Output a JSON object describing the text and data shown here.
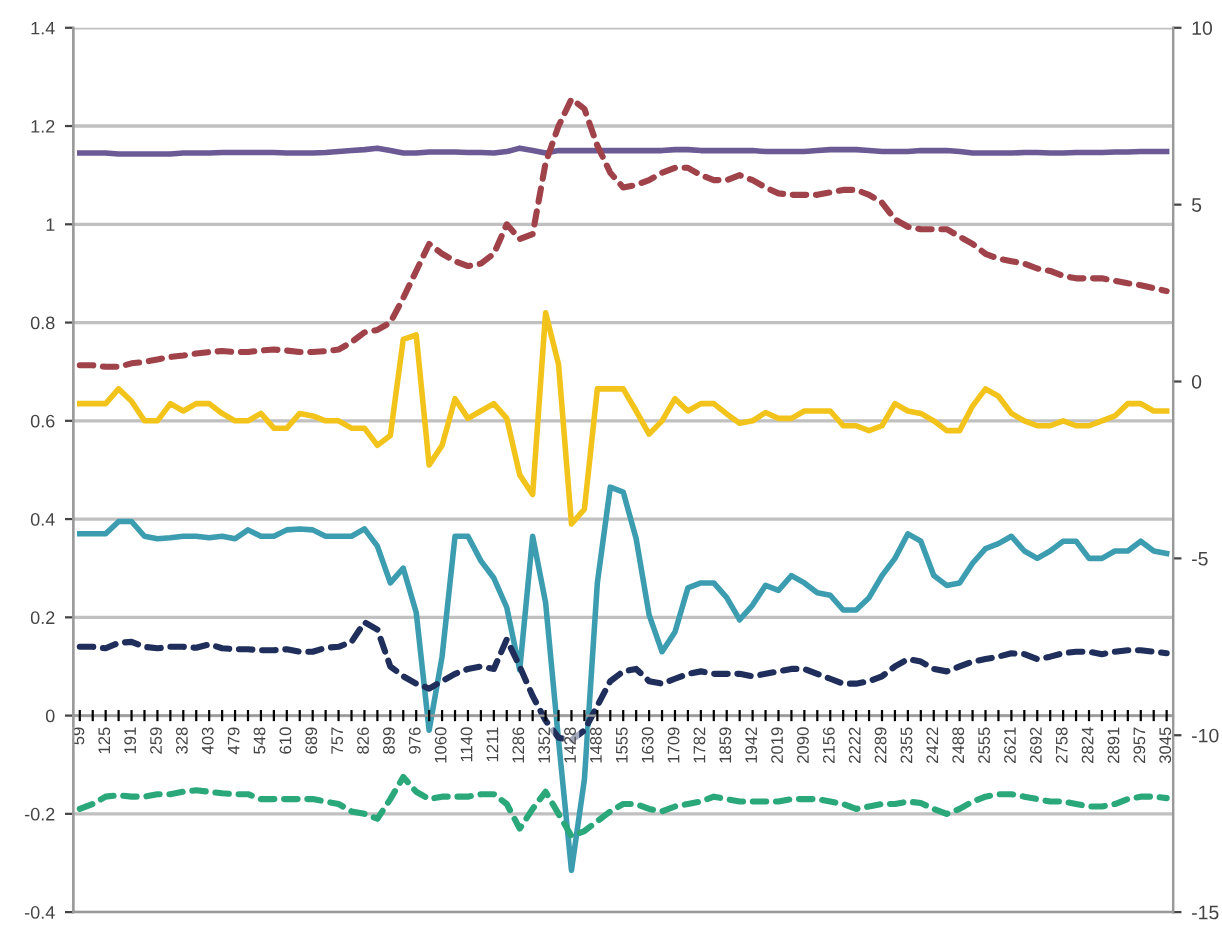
{
  "chart_data": {
    "type": "line",
    "categories": [
      "59",
      null,
      "125",
      null,
      "191",
      null,
      "259",
      null,
      "328",
      null,
      "403",
      null,
      "479",
      null,
      "548",
      null,
      "610",
      null,
      "689",
      null,
      "757",
      null,
      "826",
      null,
      "899",
      null,
      "976",
      null,
      "1060",
      null,
      "1140",
      null,
      "1211",
      null,
      "1286",
      null,
      "1352",
      null,
      "1428",
      null,
      "1488",
      null,
      "1555",
      null,
      "1630",
      null,
      "1709",
      null,
      "1782",
      null,
      "1859",
      null,
      "1942",
      null,
      "2019",
      null,
      "2090",
      null,
      "2156",
      null,
      "2222",
      null,
      "2289",
      null,
      "2355",
      null,
      "2422",
      null,
      "2488",
      null,
      "2555",
      null,
      "2621",
      null,
      "2692",
      null,
      "2758",
      null,
      "2824",
      null,
      "2891",
      null,
      "2957",
      null,
      "3045"
    ],
    "series": [
      {
        "color": "#6b5a94",
        "line_style": "solid",
        "values": [
          1.145,
          1.145,
          1.145,
          1.143,
          1.143,
          1.143,
          1.143,
          1.143,
          1.145,
          1.145,
          1.145,
          1.146,
          1.146,
          1.146,
          1.146,
          1.146,
          1.145,
          1.145,
          1.145,
          1.146,
          1.148,
          1.15,
          1.152,
          1.155,
          1.15,
          1.145,
          1.145,
          1.147,
          1.147,
          1.147,
          1.146,
          1.146,
          1.145,
          1.148,
          1.155,
          1.15,
          1.145,
          1.15,
          1.15,
          1.15,
          1.15,
          1.15,
          1.15,
          1.15,
          1.15,
          1.15,
          1.152,
          1.152,
          1.15,
          1.15,
          1.15,
          1.15,
          1.15,
          1.148,
          1.148,
          1.148,
          1.148,
          1.15,
          1.152,
          1.152,
          1.152,
          1.15,
          1.148,
          1.148,
          1.148,
          1.15,
          1.15,
          1.15,
          1.148,
          1.145,
          1.145,
          1.145,
          1.145,
          1.146,
          1.146,
          1.145,
          1.145,
          1.146,
          1.146,
          1.146,
          1.147,
          1.147,
          1.148,
          1.148,
          1.148
        ]
      },
      {
        "color": "#a0424a",
        "line_style": "dashed",
        "values": [
          0.713,
          0.713,
          0.71,
          0.71,
          0.717,
          0.72,
          0.725,
          0.73,
          0.733,
          0.737,
          0.74,
          0.742,
          0.74,
          0.74,
          0.743,
          0.745,
          0.743,
          0.74,
          0.74,
          0.742,
          0.745,
          0.76,
          0.78,
          0.785,
          0.8,
          0.85,
          0.905,
          0.96,
          0.94,
          0.925,
          0.915,
          0.92,
          0.94,
          1.0,
          0.97,
          0.98,
          1.125,
          1.2,
          1.255,
          1.235,
          1.16,
          1.105,
          1.075,
          1.08,
          1.09,
          1.105,
          1.115,
          1.115,
          1.1,
          1.09,
          1.09,
          1.1,
          1.09,
          1.075,
          1.063,
          1.06,
          1.06,
          1.06,
          1.065,
          1.07,
          1.07,
          1.06,
          1.044,
          1.01,
          0.995,
          0.99,
          0.99,
          0.99,
          0.975,
          0.96,
          0.94,
          0.93,
          0.925,
          0.92,
          0.91,
          0.905,
          0.895,
          0.89,
          0.89,
          0.89,
          0.885,
          0.88,
          0.876,
          0.87,
          0.864
        ]
      },
      {
        "color": "#f2c31a",
        "line_style": "solid",
        "values": [
          0.635,
          0.635,
          0.635,
          0.665,
          0.64,
          0.6,
          0.6,
          0.635,
          0.62,
          0.635,
          0.635,
          0.615,
          0.6,
          0.6,
          0.615,
          0.585,
          0.585,
          0.615,
          0.61,
          0.6,
          0.6,
          0.585,
          0.585,
          0.55,
          0.57,
          0.766,
          0.775,
          0.51,
          0.55,
          0.645,
          0.605,
          0.62,
          0.635,
          0.605,
          0.49,
          0.45,
          0.82,
          0.715,
          0.39,
          0.42,
          0.665,
          0.665,
          0.665,
          0.62,
          0.573,
          0.6,
          0.645,
          0.62,
          0.635,
          0.635,
          0.614,
          0.595,
          0.6,
          0.617,
          0.605,
          0.605,
          0.62,
          0.62,
          0.62,
          0.59,
          0.59,
          0.58,
          0.59,
          0.635,
          0.62,
          0.615,
          0.6,
          0.58,
          0.58,
          0.63,
          0.665,
          0.65,
          0.615,
          0.6,
          0.59,
          0.59,
          0.6,
          0.59,
          0.59,
          0.6,
          0.61,
          0.635,
          0.635,
          0.62,
          0.62
        ]
      },
      {
        "color": "#3c9cb0",
        "line_style": "solid",
        "values": [
          0.37,
          0.37,
          0.37,
          0.395,
          0.395,
          0.365,
          0.36,
          0.362,
          0.365,
          0.365,
          0.362,
          0.365,
          0.36,
          0.378,
          0.365,
          0.365,
          0.378,
          0.38,
          0.378,
          0.365,
          0.365,
          0.365,
          0.38,
          0.345,
          0.27,
          0.3,
          0.21,
          -0.03,
          0.12,
          0.365,
          0.365,
          0.315,
          0.28,
          0.22,
          0.093,
          0.365,
          0.23,
          -0.05,
          -0.315,
          -0.13,
          0.27,
          0.465,
          0.455,
          0.36,
          0.205,
          0.13,
          0.17,
          0.26,
          0.27,
          0.27,
          0.24,
          0.195,
          0.225,
          0.265,
          0.255,
          0.285,
          0.27,
          0.25,
          0.245,
          0.215,
          0.215,
          0.24,
          0.285,
          0.32,
          0.37,
          0.355,
          0.285,
          0.265,
          0.27,
          0.31,
          0.34,
          0.35,
          0.365,
          0.335,
          0.32,
          0.335,
          0.355,
          0.355,
          0.32,
          0.32,
          0.335,
          0.335,
          0.355,
          0.335,
          0.33
        ]
      },
      {
        "color": "#1f2e5a",
        "line_style": "dashed",
        "values": [
          0.14,
          0.14,
          0.137,
          0.148,
          0.15,
          0.14,
          0.137,
          0.14,
          0.14,
          0.138,
          0.145,
          0.137,
          0.135,
          0.135,
          0.133,
          0.133,
          0.135,
          0.13,
          0.13,
          0.138,
          0.14,
          0.15,
          0.19,
          0.175,
          0.1,
          0.08,
          0.065,
          0.055,
          0.07,
          0.085,
          0.095,
          0.1,
          0.095,
          0.155,
          0.1,
          0.04,
          -0.01,
          -0.045,
          -0.05,
          -0.03,
          0.02,
          0.07,
          0.09,
          0.095,
          0.07,
          0.065,
          0.075,
          0.085,
          0.09,
          0.085,
          0.085,
          0.085,
          0.08,
          0.085,
          0.09,
          0.095,
          0.095,
          0.085,
          0.075,
          0.065,
          0.065,
          0.07,
          0.08,
          0.1,
          0.115,
          0.11,
          0.095,
          0.09,
          0.1,
          0.11,
          0.115,
          0.12,
          0.127,
          0.125,
          0.115,
          0.12,
          0.127,
          0.13,
          0.13,
          0.125,
          0.13,
          0.133,
          0.133,
          0.13,
          0.127
        ]
      },
      {
        "color": "#2aa87a",
        "line_style": "dashed",
        "values": [
          -0.19,
          -0.18,
          -0.165,
          -0.162,
          -0.165,
          -0.165,
          -0.16,
          -0.16,
          -0.155,
          -0.152,
          -0.155,
          -0.158,
          -0.16,
          -0.16,
          -0.17,
          -0.17,
          -0.17,
          -0.17,
          -0.17,
          -0.175,
          -0.18,
          -0.195,
          -0.2,
          -0.21,
          -0.17,
          -0.125,
          -0.155,
          -0.17,
          -0.165,
          -0.165,
          -0.165,
          -0.16,
          -0.16,
          -0.18,
          -0.23,
          -0.19,
          -0.155,
          -0.2,
          -0.245,
          -0.235,
          -0.215,
          -0.195,
          -0.18,
          -0.18,
          -0.19,
          -0.195,
          -0.185,
          -0.18,
          -0.175,
          -0.165,
          -0.17,
          -0.175,
          -0.175,
          -0.175,
          -0.175,
          -0.17,
          -0.17,
          -0.17,
          -0.175,
          -0.18,
          -0.19,
          -0.185,
          -0.18,
          -0.18,
          -0.175,
          -0.178,
          -0.19,
          -0.2,
          -0.19,
          -0.175,
          -0.165,
          -0.16,
          -0.16,
          -0.165,
          -0.17,
          -0.175,
          -0.175,
          -0.18,
          -0.185,
          -0.185,
          -0.18,
          -0.17,
          -0.165,
          -0.165,
          -0.168
        ]
      }
    ],
    "ylim": [
      -0.4,
      1.4
    ],
    "yticks": [
      {
        "value": -0.4,
        "label": "-0.4"
      },
      {
        "value": -0.2,
        "label": "-0.2"
      },
      0,
      0.2,
      0.4,
      0.6,
      0.8,
      1,
      1.2,
      1.4
    ],
    "y2lim": [
      -15,
      10
    ],
    "y2ticks": [
      {
        "value": -15,
        "label": "-15"
      },
      {
        "value": -10,
        "label": "-10"
      },
      {
        "value": -5,
        "label": "-5"
      },
      0,
      5,
      10
    ],
    "grid": "y"
  }
}
